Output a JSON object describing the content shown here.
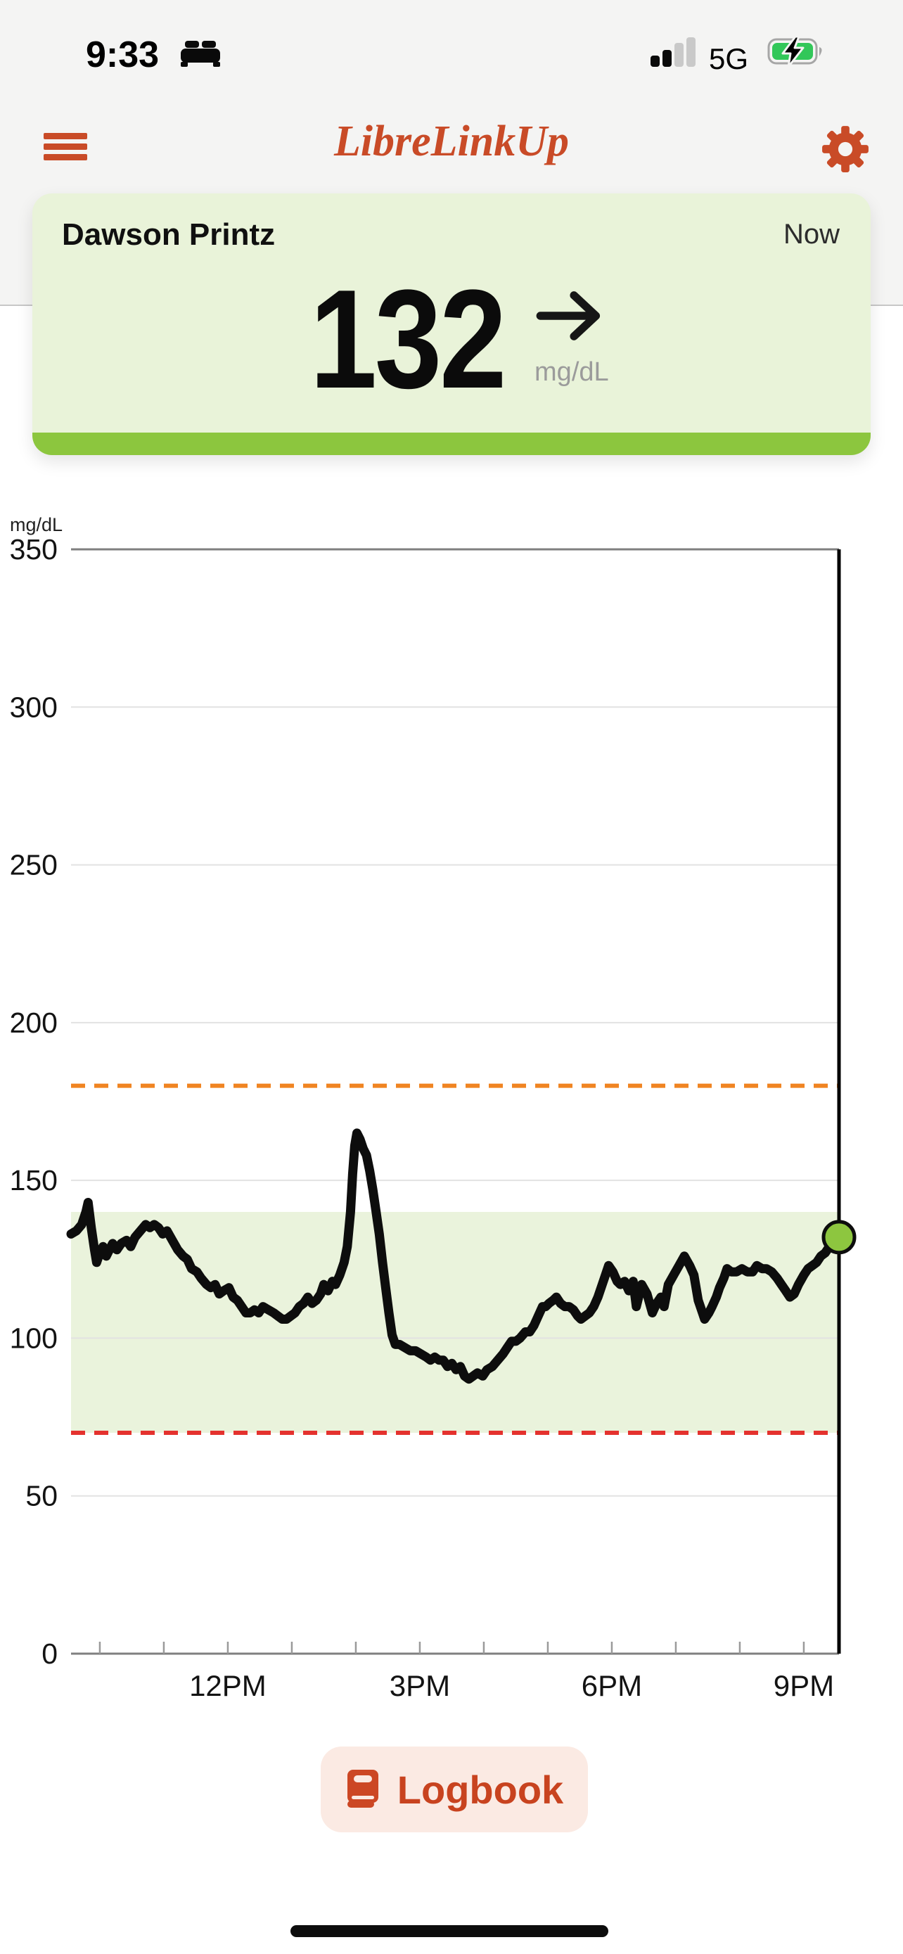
{
  "status_bar": {
    "time": "9:33",
    "network": "5G",
    "focus_icon": "bed-sleep-focus-icon",
    "signal_icon": "cellular-signal-2of4",
    "battery_icon": "battery-charging-green"
  },
  "header": {
    "title": "LibreLinkUp",
    "menu_icon": "hamburger-menu-icon",
    "settings_icon": "gear-icon",
    "accent_color": "#c94b27"
  },
  "patient_card": {
    "name": "Dawson Printz",
    "timestamp_label": "Now",
    "glucose_value": "132",
    "unit": "mg/dL",
    "trend_icon": "arrow-right-steady",
    "bg_color": "#e9f3d9",
    "bottom_bar_color": "#8cc63e"
  },
  "chart_data": {
    "type": "line",
    "ylabel": "mg/dL",
    "ylim": [
      0,
      350
    ],
    "y_ticks": [
      350,
      300,
      250,
      200,
      150,
      100,
      50,
      0
    ],
    "grid": "horizontal",
    "x_total_minutes": 720,
    "x_minor_tick_minutes": [
      27,
      87,
      147,
      207,
      267,
      327,
      387,
      447,
      507,
      567,
      627,
      687
    ],
    "x_tick_labels": [
      {
        "label": "12PM",
        "minutes": 147
      },
      {
        "label": "3PM",
        "minutes": 327
      },
      {
        "label": "6PM",
        "minutes": 507
      },
      {
        "label": "9PM",
        "minutes": 687
      }
    ],
    "target_band": {
      "low": 70,
      "high": 140,
      "color": "#eaf3dc"
    },
    "high_threshold": {
      "value": 180,
      "color": "#f08421",
      "style": "dashed"
    },
    "low_threshold": {
      "value": 70,
      "color": "#e4322e",
      "style": "dashed"
    },
    "now_line_color": "#000000",
    "series": [
      {
        "name": "glucose",
        "color": "#0d0d0d",
        "points_min_mgdl": [
          [
            0,
            133
          ],
          [
            5,
            134
          ],
          [
            10,
            136
          ],
          [
            14,
            140
          ],
          [
            16,
            143
          ],
          [
            19,
            135
          ],
          [
            22,
            128
          ],
          [
            24,
            124
          ],
          [
            27,
            127
          ],
          [
            30,
            129
          ],
          [
            33,
            126
          ],
          [
            36,
            128
          ],
          [
            39,
            130
          ],
          [
            43,
            128
          ],
          [
            47,
            130
          ],
          [
            52,
            131
          ],
          [
            56,
            129
          ],
          [
            60,
            132
          ],
          [
            65,
            134
          ],
          [
            70,
            136
          ],
          [
            74,
            135
          ],
          [
            78,
            136
          ],
          [
            82,
            135
          ],
          [
            86,
            133
          ],
          [
            90,
            134
          ],
          [
            95,
            131
          ],
          [
            100,
            128
          ],
          [
            105,
            126
          ],
          [
            109,
            125
          ],
          [
            113,
            122
          ],
          [
            118,
            121
          ],
          [
            122,
            119
          ],
          [
            127,
            117
          ],
          [
            131,
            116
          ],
          [
            135,
            117
          ],
          [
            139,
            114
          ],
          [
            143,
            115
          ],
          [
            148,
            116
          ],
          [
            152,
            113
          ],
          [
            156,
            112
          ],
          [
            160,
            110
          ],
          [
            164,
            108
          ],
          [
            168,
            108
          ],
          [
            172,
            109
          ],
          [
            176,
            108
          ],
          [
            180,
            110
          ],
          [
            185,
            109
          ],
          [
            190,
            108
          ],
          [
            194,
            107
          ],
          [
            198,
            106
          ],
          [
            202,
            106
          ],
          [
            206,
            107
          ],
          [
            210,
            108
          ],
          [
            214,
            110
          ],
          [
            218,
            111
          ],
          [
            222,
            113
          ],
          [
            226,
            111
          ],
          [
            230,
            112
          ],
          [
            234,
            114
          ],
          [
            237,
            117
          ],
          [
            241,
            115
          ],
          [
            245,
            118
          ],
          [
            248,
            117
          ],
          [
            252,
            120
          ],
          [
            256,
            124
          ],
          [
            259,
            129
          ],
          [
            262,
            140
          ],
          [
            264,
            152
          ],
          [
            266,
            161
          ],
          [
            268,
            165
          ],
          [
            271,
            163
          ],
          [
            274,
            160
          ],
          [
            277,
            158
          ],
          [
            280,
            153
          ],
          [
            283,
            147
          ],
          [
            286,
            140
          ],
          [
            289,
            133
          ],
          [
            292,
            124
          ],
          [
            295,
            116
          ],
          [
            298,
            108
          ],
          [
            301,
            101
          ],
          [
            304,
            98
          ],
          [
            308,
            98
          ],
          [
            313,
            97
          ],
          [
            318,
            96
          ],
          [
            323,
            96
          ],
          [
            328,
            95
          ],
          [
            333,
            94
          ],
          [
            337,
            93
          ],
          [
            341,
            94
          ],
          [
            345,
            93
          ],
          [
            349,
            93
          ],
          [
            353,
            91
          ],
          [
            357,
            92
          ],
          [
            361,
            90
          ],
          [
            365,
            91
          ],
          [
            369,
            88
          ],
          [
            373,
            87
          ],
          [
            377,
            88
          ],
          [
            381,
            89
          ],
          [
            386,
            88
          ],
          [
            390,
            90
          ],
          [
            395,
            91
          ],
          [
            400,
            93
          ],
          [
            405,
            95
          ],
          [
            409,
            97
          ],
          [
            413,
            99
          ],
          [
            417,
            99
          ],
          [
            421,
            100
          ],
          [
            426,
            102
          ],
          [
            430,
            102
          ],
          [
            434,
            104
          ],
          [
            438,
            107
          ],
          [
            442,
            110
          ],
          [
            445,
            110
          ],
          [
            448,
            111
          ],
          [
            452,
            112
          ],
          [
            455,
            113
          ],
          [
            459,
            111
          ],
          [
            463,
            110
          ],
          [
            467,
            110
          ],
          [
            471,
            109
          ],
          [
            475,
            107
          ],
          [
            478,
            106
          ],
          [
            482,
            107
          ],
          [
            486,
            108
          ],
          [
            490,
            110
          ],
          [
            494,
            113
          ],
          [
            498,
            117
          ],
          [
            501,
            120
          ],
          [
            504,
            123
          ],
          [
            508,
            121
          ],
          [
            512,
            118
          ],
          [
            515,
            117
          ],
          [
            519,
            118
          ],
          [
            523,
            115
          ],
          [
            527,
            118
          ],
          [
            530,
            110
          ],
          [
            535,
            117
          ],
          [
            540,
            114
          ],
          [
            545,
            108
          ],
          [
            549,
            111
          ],
          [
            553,
            113
          ],
          [
            556,
            110
          ],
          [
            560,
            117
          ],
          [
            565,
            120
          ],
          [
            570,
            123
          ],
          [
            575,
            126
          ],
          [
            580,
            123
          ],
          [
            584,
            120
          ],
          [
            588,
            112
          ],
          [
            592,
            108
          ],
          [
            594,
            106
          ],
          [
            598,
            108
          ],
          [
            601,
            110
          ],
          [
            605,
            113
          ],
          [
            608,
            116
          ],
          [
            612,
            119
          ],
          [
            615,
            122
          ],
          [
            619,
            121
          ],
          [
            624,
            121
          ],
          [
            629,
            122
          ],
          [
            634,
            121
          ],
          [
            639,
            121
          ],
          [
            643,
            123
          ],
          [
            648,
            122
          ],
          [
            652,
            122
          ],
          [
            657,
            121
          ],
          [
            662,
            119
          ],
          [
            666,
            117
          ],
          [
            670,
            115
          ],
          [
            674,
            113
          ],
          [
            678,
            114
          ],
          [
            682,
            117
          ],
          [
            687,
            120
          ],
          [
            691,
            122
          ],
          [
            695,
            123
          ],
          [
            699,
            124
          ],
          [
            703,
            126
          ],
          [
            707,
            127
          ],
          [
            711,
            129
          ],
          [
            715,
            130
          ],
          [
            720,
            132
          ]
        ]
      }
    ],
    "current_point": {
      "minutes": 720,
      "value": 132,
      "dot_color": "#8dc63f"
    }
  },
  "logbook_button": {
    "label": "Logbook",
    "icon": "book-icon",
    "text_color": "#c8431f",
    "bg_color": "#fbeae3"
  },
  "colors": {
    "top_zone_bg": "#f4f4f3",
    "content_bg": "#ffffff",
    "divider": "#c7c7c7",
    "grid_major": "#7f7f7f",
    "grid_minor": "#e2e2e2",
    "tick": "#9a9a9a",
    "axis_text": "#131313"
  }
}
